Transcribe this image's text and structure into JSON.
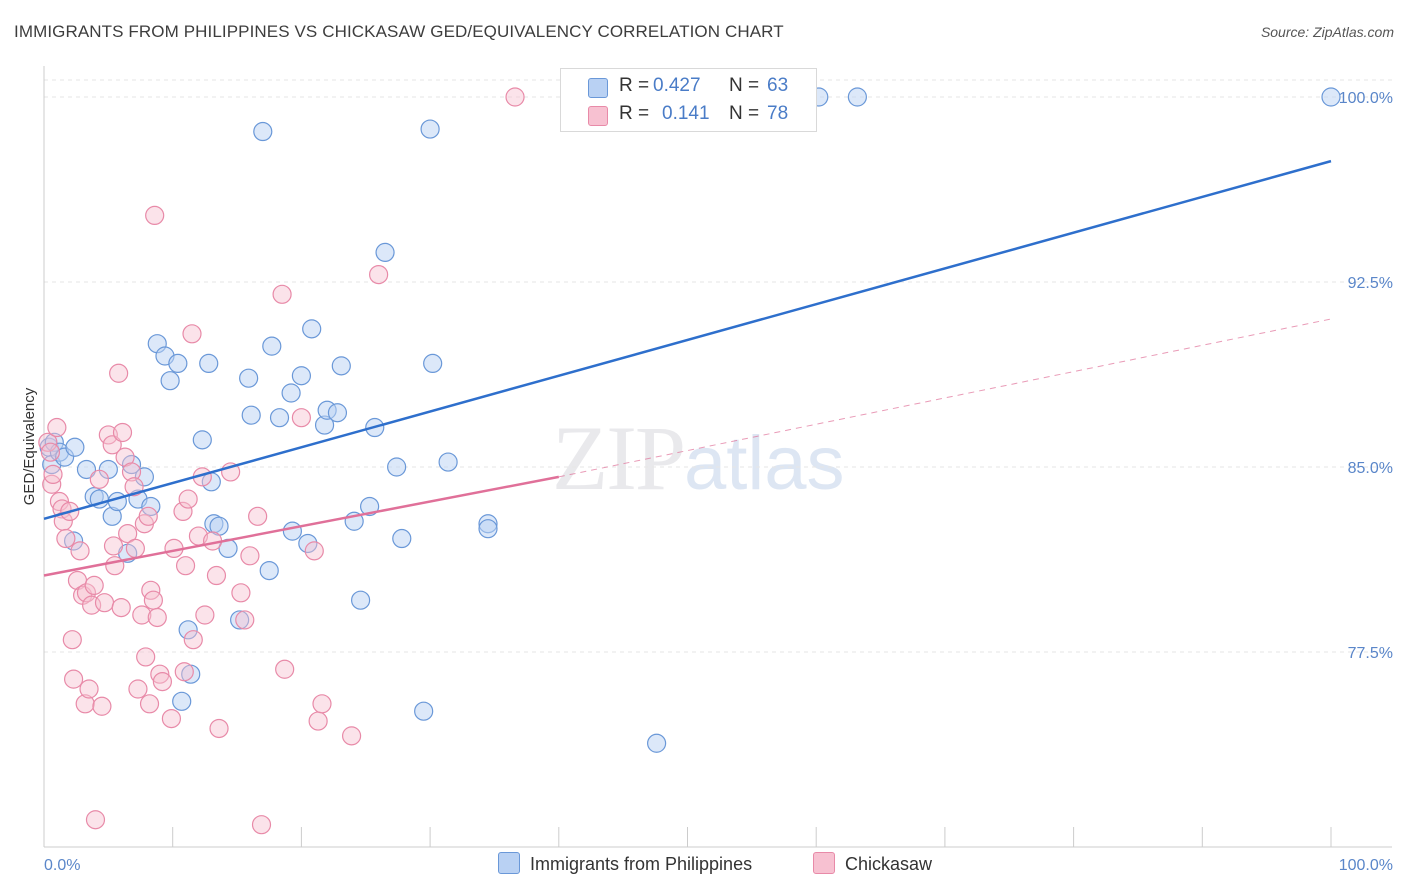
{
  "title": "IMMIGRANTS FROM PHILIPPINES VS CHICKASAW GED/EQUIVALENCY CORRELATION CHART",
  "source": "Source: ZipAtlas.com",
  "watermark": {
    "zip": "ZIP",
    "atlas": "atlas"
  },
  "legend": {
    "r_label": "R =",
    "n_label": "N =",
    "rows": [
      {
        "r": "0.427",
        "n": "63"
      },
      {
        "r": "0.141",
        "n": "78"
      }
    ]
  },
  "colors": {
    "blue_fill": "#b9d1f3",
    "blue_stroke": "#6a98d8",
    "blue_line": "#2e6fcc",
    "pink_fill": "#f7c1d1",
    "pink_stroke": "#e88aa8",
    "pink_line": "#e07099",
    "axis_text": "#5a86c9",
    "grid": "#e6e6e6"
  },
  "chart_data": {
    "type": "scatter",
    "title": "IMMIGRANTS FROM PHILIPPINES VS CHICKASAW GED/EQUIVALENCY CORRELATION CHART",
    "xlabel": "",
    "ylabel": "GED/Equivalency",
    "x_tick_labels": [
      "0.0%",
      "100.0%"
    ],
    "y_tick_labels": [
      "100.0%",
      "92.5%",
      "85.0%",
      "77.5%"
    ],
    "y_ticks": [
      100.0,
      92.5,
      85.0,
      77.5
    ],
    "xlim": [
      0,
      100
    ],
    "ylim": [
      70.0,
      100.7
    ],
    "grid": "horizontal dashed",
    "legend_position": "top-center",
    "series": [
      {
        "name": "Immigrants from Philippines",
        "color": "#6a98d8",
        "trend": {
          "x": [
            0,
            100
          ],
          "y": [
            82.9,
            97.4
          ],
          "style": "solid"
        },
        "points": [
          [
            0.4,
            85.8
          ],
          [
            0.6,
            85.1
          ],
          [
            0.8,
            86.0
          ],
          [
            1.2,
            85.6
          ],
          [
            1.6,
            85.4
          ],
          [
            2.4,
            85.8
          ],
          [
            2.3,
            82.0
          ],
          [
            3.3,
            84.9
          ],
          [
            3.9,
            83.8
          ],
          [
            4.3,
            83.7
          ],
          [
            5.0,
            84.9
          ],
          [
            5.3,
            83.0
          ],
          [
            5.7,
            83.6
          ],
          [
            6.5,
            81.5
          ],
          [
            6.8,
            85.1
          ],
          [
            7.3,
            83.7
          ],
          [
            7.8,
            84.6
          ],
          [
            8.3,
            83.4
          ],
          [
            8.8,
            90.0
          ],
          [
            9.4,
            89.5
          ],
          [
            9.8,
            88.5
          ],
          [
            10.4,
            89.2
          ],
          [
            11.2,
            78.4
          ],
          [
            11.4,
            76.6
          ],
          [
            10.7,
            75.5
          ],
          [
            12.3,
            86.1
          ],
          [
            12.8,
            89.2
          ],
          [
            13.0,
            84.4
          ],
          [
            13.2,
            82.7
          ],
          [
            13.6,
            82.6
          ],
          [
            14.3,
            81.7
          ],
          [
            15.2,
            78.8
          ],
          [
            15.9,
            88.6
          ],
          [
            16.1,
            87.1
          ],
          [
            17.0,
            98.6
          ],
          [
            17.5,
            80.8
          ],
          [
            17.7,
            89.9
          ],
          [
            18.3,
            87.0
          ],
          [
            19.2,
            88.0
          ],
          [
            19.3,
            82.4
          ],
          [
            20.0,
            88.7
          ],
          [
            20.5,
            81.9
          ],
          [
            20.8,
            90.6
          ],
          [
            21.8,
            86.7
          ],
          [
            22.0,
            87.3
          ],
          [
            22.8,
            87.2
          ],
          [
            23.1,
            89.1
          ],
          [
            24.1,
            82.8
          ],
          [
            24.6,
            79.6
          ],
          [
            25.3,
            83.4
          ],
          [
            25.7,
            86.6
          ],
          [
            26.5,
            93.7
          ],
          [
            27.4,
            85.0
          ],
          [
            27.8,
            82.1
          ],
          [
            29.5,
            75.1
          ],
          [
            30.0,
            98.7
          ],
          [
            30.2,
            89.2
          ],
          [
            31.4,
            85.2
          ],
          [
            34.5,
            82.7
          ],
          [
            34.5,
            82.5
          ],
          [
            47.6,
            73.8
          ],
          [
            60.2,
            100.0
          ],
          [
            63.2,
            100.0
          ],
          [
            100.0,
            100.0
          ]
        ]
      },
      {
        "name": "Chickasaw",
        "color": "#e88aa8",
        "trend": {
          "x": [
            0,
            40
          ],
          "y": [
            80.6,
            84.6
          ],
          "style": "solid",
          "extended_dashed_to": [
            100,
            91.0
          ]
        },
        "points": [
          [
            0.3,
            86.0
          ],
          [
            0.5,
            85.6
          ],
          [
            0.6,
            84.3
          ],
          [
            0.7,
            84.7
          ],
          [
            1.0,
            86.6
          ],
          [
            1.2,
            83.6
          ],
          [
            1.4,
            83.3
          ],
          [
            1.5,
            82.8
          ],
          [
            1.7,
            82.1
          ],
          [
            2.0,
            83.2
          ],
          [
            2.2,
            78.0
          ],
          [
            2.3,
            76.4
          ],
          [
            2.6,
            80.4
          ],
          [
            2.8,
            81.6
          ],
          [
            3.0,
            79.8
          ],
          [
            3.2,
            75.4
          ],
          [
            3.3,
            79.9
          ],
          [
            3.5,
            76.0
          ],
          [
            3.7,
            79.4
          ],
          [
            3.9,
            80.2
          ],
          [
            4.0,
            70.7
          ],
          [
            4.3,
            84.5
          ],
          [
            4.5,
            75.3
          ],
          [
            4.7,
            79.5
          ],
          [
            5.0,
            86.3
          ],
          [
            5.3,
            85.9
          ],
          [
            5.4,
            81.8
          ],
          [
            5.5,
            81.0
          ],
          [
            5.8,
            88.8
          ],
          [
            6.0,
            79.3
          ],
          [
            6.1,
            86.4
          ],
          [
            6.3,
            85.4
          ],
          [
            6.5,
            82.3
          ],
          [
            6.8,
            84.8
          ],
          [
            7.0,
            84.2
          ],
          [
            7.1,
            81.7
          ],
          [
            7.3,
            76.0
          ],
          [
            7.6,
            79.0
          ],
          [
            7.8,
            82.7
          ],
          [
            7.9,
            77.3
          ],
          [
            8.1,
            83.0
          ],
          [
            8.2,
            75.4
          ],
          [
            8.3,
            80.0
          ],
          [
            8.5,
            79.6
          ],
          [
            8.6,
            95.2
          ],
          [
            8.8,
            78.9
          ],
          [
            9.0,
            76.6
          ],
          [
            9.2,
            76.3
          ],
          [
            9.9,
            74.8
          ],
          [
            10.1,
            81.7
          ],
          [
            10.8,
            83.2
          ],
          [
            10.9,
            76.7
          ],
          [
            11.0,
            81.0
          ],
          [
            11.2,
            83.7
          ],
          [
            11.5,
            90.4
          ],
          [
            11.6,
            78.0
          ],
          [
            12.0,
            82.2
          ],
          [
            12.3,
            84.6
          ],
          [
            12.5,
            79.0
          ],
          [
            13.1,
            82.0
          ],
          [
            13.4,
            80.6
          ],
          [
            13.6,
            74.4
          ],
          [
            14.5,
            84.8
          ],
          [
            15.3,
            79.9
          ],
          [
            15.6,
            78.8
          ],
          [
            16.0,
            81.4
          ],
          [
            16.6,
            83.0
          ],
          [
            16.9,
            70.5
          ],
          [
            18.5,
            92.0
          ],
          [
            18.7,
            76.8
          ],
          [
            20.0,
            87.0
          ],
          [
            21.0,
            81.6
          ],
          [
            21.3,
            74.7
          ],
          [
            21.6,
            75.4
          ],
          [
            23.9,
            74.1
          ],
          [
            26.0,
            92.8
          ],
          [
            36.6,
            100.0
          ]
        ]
      }
    ]
  }
}
